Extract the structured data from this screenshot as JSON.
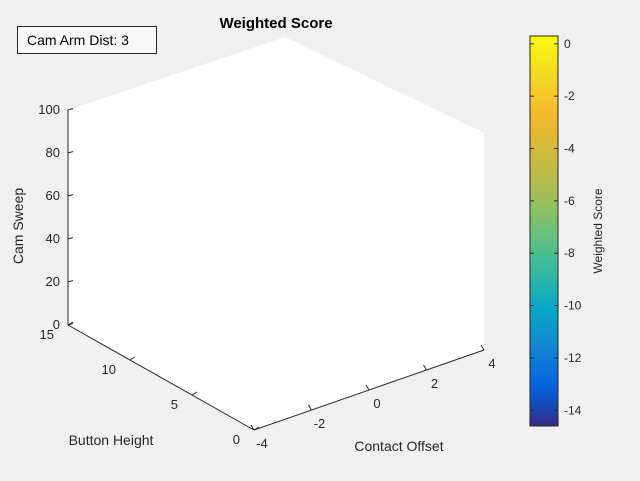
{
  "annotation": "Cam Arm Dist: 3",
  "chart_data": {
    "type": "scatter3d",
    "title": "Weighted Score",
    "xlabel": "Contact Offset",
    "ylabel": "Button Height",
    "zlabel": "Cam Sweep",
    "xlim": [
      -4,
      4
    ],
    "ylim": [
      0,
      15
    ],
    "zlim": [
      0,
      100
    ],
    "x_ticks": [
      "-4",
      "-2",
      "0",
      "2",
      "4"
    ],
    "y_ticks": [
      "0",
      "5",
      "10",
      "15"
    ],
    "z_ticks": [
      "0",
      "20",
      "40",
      "60",
      "80",
      "100"
    ],
    "series": [],
    "grid": false,
    "colormap": "parula",
    "colorbar": {
      "label": "Weighted Score",
      "range": [
        -14.6,
        0.3
      ],
      "ticks": [
        "0",
        "-2",
        "-4",
        "-6",
        "-8",
        "-10",
        "-12",
        "-14"
      ]
    },
    "colors": {
      "background": "#f0f0f0",
      "axes_face": "#ffffff",
      "text": "#262626"
    }
  }
}
